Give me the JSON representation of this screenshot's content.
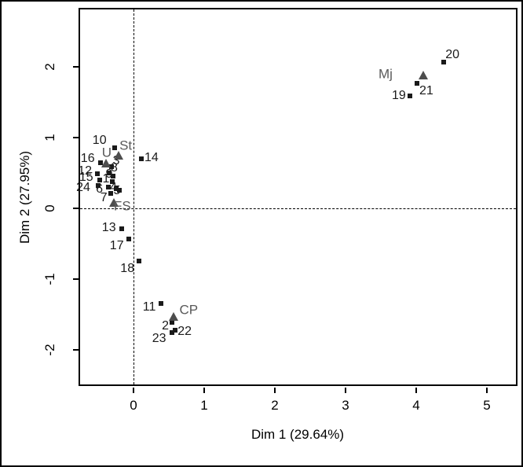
{
  "figure": {
    "background": "#ffffff",
    "border_color": "#000000"
  },
  "chart_data": {
    "type": "scatter",
    "title": "",
    "xlabel": "Dim 1 (29.64%)",
    "ylabel": "Dim 2 (27.95%)",
    "x_ticks": [
      0,
      1,
      2,
      3,
      4,
      5
    ],
    "y_ticks": [
      -2,
      -1,
      0,
      1,
      2
    ],
    "xlim": [
      -0.78,
      5.43
    ],
    "ylim": [
      -2.52,
      2.83
    ],
    "grid": false,
    "legend": "none",
    "reference_lines": [
      {
        "axis": "x",
        "value": 0,
        "style": "dashed",
        "color": "#000000"
      },
      {
        "axis": "y",
        "value": 0,
        "style": "dashed",
        "color": "#000000"
      }
    ],
    "series": [
      {
        "name": "individuals",
        "marker": "square",
        "color": "#1a1a1a",
        "label_color": "#1a1a1a",
        "points": [
          {
            "label": "1",
            "x": -0.3,
            "y": 0.38,
            "dx": -8,
            "dy": -3
          },
          {
            "label": "2",
            "x": 0.54,
            "y": -1.61,
            "dx": -8,
            "dy": 5
          },
          {
            "label": "3",
            "x": -0.31,
            "y": 0.59,
            "dx": 6,
            "dy": -7
          },
          {
            "label": "4",
            "x": -0.24,
            "y": 0.28,
            "dx": -4,
            "dy": -1
          },
          {
            "label": "5",
            "x": -0.2,
            "y": 0.26,
            "dx": -3,
            "dy": 1
          },
          {
            "label": "6",
            "x": -0.36,
            "y": 0.3,
            "dx": -11,
            "dy": 3
          },
          {
            "label": "7",
            "x": -0.32,
            "y": 0.21,
            "dx": -9,
            "dy": 6
          },
          {
            "label": "8",
            "x": -0.34,
            "y": 0.5,
            "dx": 6,
            "dy": -6
          },
          {
            "label": "9",
            "x": -0.29,
            "y": 0.46,
            "dx": -5,
            "dy": -2
          },
          {
            "label": "10",
            "x": -0.27,
            "y": 0.86,
            "dx": -19,
            "dy": -9
          },
          {
            "label": "11",
            "x": 0.39,
            "y": -1.34,
            "dx": -15,
            "dy": 5
          },
          {
            "label": "12",
            "x": -0.51,
            "y": 0.49,
            "dx": -16,
            "dy": -3
          },
          {
            "label": "13",
            "x": -0.17,
            "y": -0.29,
            "dx": -16,
            "dy": -1
          },
          {
            "label": "14",
            "x": 0.11,
            "y": 0.7,
            "dx": 13,
            "dy": -1
          },
          {
            "label": "15",
            "x": -0.48,
            "y": 0.4,
            "dx": -17,
            "dy": -3
          },
          {
            "label": "16",
            "x": -0.47,
            "y": 0.64,
            "dx": -16,
            "dy": -5
          },
          {
            "label": "17",
            "x": -0.07,
            "y": -0.43,
            "dx": -15,
            "dy": 9
          },
          {
            "label": "18",
            "x": 0.08,
            "y": -0.74,
            "dx": -15,
            "dy": 10
          },
          {
            "label": "19",
            "x": 3.91,
            "y": 1.59,
            "dx": -14,
            "dy": 0
          },
          {
            "label": "20",
            "x": 4.39,
            "y": 2.07,
            "dx": 11,
            "dy": -9
          },
          {
            "label": "21",
            "x": 4.01,
            "y": 1.77,
            "dx": 12,
            "dy": 10
          },
          {
            "label": "22",
            "x": 0.59,
            "y": -1.72,
            "dx": 12,
            "dy": 2
          },
          {
            "label": "23",
            "x": 0.54,
            "y": -1.76,
            "dx": -16,
            "dy": 8
          },
          {
            "label": "24",
            "x": -0.5,
            "y": 0.32,
            "dx": -19,
            "dy": 3
          }
        ]
      },
      {
        "name": "group-centroids",
        "marker": "triangle",
        "color": "#4d4d4d",
        "label_color": "#595959",
        "points": [
          {
            "label": "U",
            "x": -0.39,
            "y": 0.63,
            "dx": 1,
            "dy": -14
          },
          {
            "label": "St",
            "x": -0.21,
            "y": 0.74,
            "dx": 9,
            "dy": -13
          },
          {
            "label": "FS",
            "x": -0.28,
            "y": 0.08,
            "dx": 11,
            "dy": 4
          },
          {
            "label": "CP",
            "x": 0.57,
            "y": -1.53,
            "dx": 19,
            "dy": -9
          },
          {
            "label": "Mj",
            "x": 4.1,
            "y": 1.88,
            "dx": -48,
            "dy": -2
          }
        ]
      }
    ]
  }
}
